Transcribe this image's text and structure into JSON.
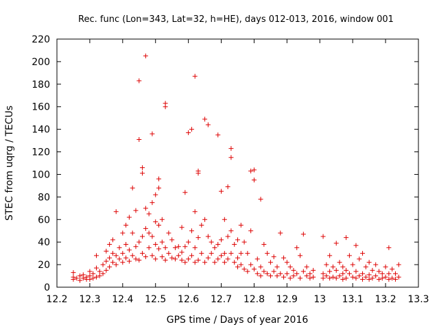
{
  "chart_data": {
    "type": "scatter",
    "title": "Rec. func (Lon=343, Lat=32, h=HE), days 012-013, 2016, window 001",
    "xlabel": "GPS time / Days of year 2016",
    "ylabel": "STEC from uqrg / TECUs",
    "xlim": [
      12.2,
      13.3
    ],
    "ylim": [
      0,
      220
    ],
    "xticks": [
      {
        "value": 12.2,
        "label": "12.2"
      },
      {
        "value": 12.3,
        "label": "12.3"
      },
      {
        "value": 12.4,
        "label": "12.4"
      },
      {
        "value": 12.5,
        "label": "12.5"
      },
      {
        "value": 12.6,
        "label": "12.6"
      },
      {
        "value": 12.7,
        "label": "12.7"
      },
      {
        "value": 12.8,
        "label": "12.8"
      },
      {
        "value": 12.9,
        "label": "12.9"
      },
      {
        "value": 13.0,
        "label": "13"
      },
      {
        "value": 13.1,
        "label": "13.1"
      },
      {
        "value": 13.2,
        "label": "13.2"
      },
      {
        "value": 13.3,
        "label": "13.3"
      }
    ],
    "yticks": [
      {
        "value": 0,
        "label": "0"
      },
      {
        "value": 20,
        "label": "20"
      },
      {
        "value": 40,
        "label": "40"
      },
      {
        "value": 60,
        "label": "60"
      },
      {
        "value": 80,
        "label": "80"
      },
      {
        "value": 100,
        "label": "100"
      },
      {
        "value": 120,
        "label": "120"
      },
      {
        "value": 140,
        "label": "140"
      },
      {
        "value": 160,
        "label": "160"
      },
      {
        "value": 180,
        "label": "180"
      },
      {
        "value": 200,
        "label": "200"
      },
      {
        "value": 220,
        "label": "220"
      }
    ],
    "marker": "+",
    "color": "#dd0000",
    "series": [
      {
        "name": "STEC",
        "points": [
          [
            12.25,
            13
          ],
          [
            12.25,
            9
          ],
          [
            12.25,
            7
          ],
          [
            12.26,
            8
          ],
          [
            12.27,
            10
          ],
          [
            12.27,
            6
          ],
          [
            12.28,
            8
          ],
          [
            12.28,
            11
          ],
          [
            12.29,
            9
          ],
          [
            12.29,
            7
          ],
          [
            12.3,
            14
          ],
          [
            12.3,
            10
          ],
          [
            12.3,
            7
          ],
          [
            12.31,
            8
          ],
          [
            12.31,
            12
          ],
          [
            12.32,
            17
          ],
          [
            12.32,
            9
          ],
          [
            12.32,
            28
          ],
          [
            12.33,
            10
          ],
          [
            12.33,
            14
          ],
          [
            12.34,
            20
          ],
          [
            12.34,
            12
          ],
          [
            12.35,
            23
          ],
          [
            12.35,
            15
          ],
          [
            12.35,
            32
          ],
          [
            12.36,
            18
          ],
          [
            12.36,
            26
          ],
          [
            12.36,
            38
          ],
          [
            12.37,
            42
          ],
          [
            12.37,
            22
          ],
          [
            12.37,
            30
          ],
          [
            12.38,
            67
          ],
          [
            12.38,
            28
          ],
          [
            12.38,
            20
          ],
          [
            12.39,
            35
          ],
          [
            12.39,
            25
          ],
          [
            12.4,
            48
          ],
          [
            12.4,
            30
          ],
          [
            12.4,
            22
          ],
          [
            12.41,
            55
          ],
          [
            12.41,
            38
          ],
          [
            12.41,
            26
          ],
          [
            12.42,
            62
          ],
          [
            12.42,
            33
          ],
          [
            12.42,
            23
          ],
          [
            12.43,
            88
          ],
          [
            12.43,
            48
          ],
          [
            12.43,
            28
          ],
          [
            12.44,
            68
          ],
          [
            12.44,
            36
          ],
          [
            12.44,
            25
          ],
          [
            12.45,
            183
          ],
          [
            12.45,
            131
          ],
          [
            12.45,
            40
          ],
          [
            12.45,
            24
          ],
          [
            12.46,
            106
          ],
          [
            12.46,
            101
          ],
          [
            12.46,
            45
          ],
          [
            12.46,
            30
          ],
          [
            12.47,
            70
          ],
          [
            12.47,
            52
          ],
          [
            12.47,
            27
          ],
          [
            12.47,
            205
          ],
          [
            12.48,
            65
          ],
          [
            12.48,
            48
          ],
          [
            12.48,
            35
          ],
          [
            12.49,
            136
          ],
          [
            12.49,
            75
          ],
          [
            12.49,
            45
          ],
          [
            12.49,
            28
          ],
          [
            12.5,
            82
          ],
          [
            12.5,
            58
          ],
          [
            12.5,
            38
          ],
          [
            12.5,
            25
          ],
          [
            12.51,
            96
          ],
          [
            12.51,
            88
          ],
          [
            12.51,
            55
          ],
          [
            12.51,
            34
          ],
          [
            12.52,
            60
          ],
          [
            12.52,
            40
          ],
          [
            12.52,
            27
          ],
          [
            12.53,
            163
          ],
          [
            12.53,
            160
          ],
          [
            12.53,
            35
          ],
          [
            12.53,
            24
          ],
          [
            12.54,
            48
          ],
          [
            12.54,
            30
          ],
          [
            12.55,
            42
          ],
          [
            12.55,
            26
          ],
          [
            12.56,
            35
          ],
          [
            12.56,
            25
          ],
          [
            12.57,
            36
          ],
          [
            12.57,
            28
          ],
          [
            12.58,
            53
          ],
          [
            12.58,
            31
          ],
          [
            12.58,
            24
          ],
          [
            12.59,
            84
          ],
          [
            12.59,
            36
          ],
          [
            12.59,
            22
          ],
          [
            12.6,
            137
          ],
          [
            12.6,
            40
          ],
          [
            12.6,
            25
          ],
          [
            12.61,
            140
          ],
          [
            12.61,
            50
          ],
          [
            12.61,
            28
          ],
          [
            12.62,
            67
          ],
          [
            12.62,
            187
          ],
          [
            12.62,
            35
          ],
          [
            12.62,
            22
          ],
          [
            12.63,
            103
          ],
          [
            12.63,
            101
          ],
          [
            12.63,
            44
          ],
          [
            12.63,
            24
          ],
          [
            12.64,
            55
          ],
          [
            12.64,
            30
          ],
          [
            12.65,
            149
          ],
          [
            12.65,
            60
          ],
          [
            12.65,
            22
          ],
          [
            12.66,
            144
          ],
          [
            12.66,
            45
          ],
          [
            12.66,
            26
          ],
          [
            12.67,
            40
          ],
          [
            12.67,
            30
          ],
          [
            12.68,
            35
          ],
          [
            12.68,
            22
          ],
          [
            12.69,
            135
          ],
          [
            12.69,
            38
          ],
          [
            12.69,
            25
          ],
          [
            12.7,
            85
          ],
          [
            12.7,
            42
          ],
          [
            12.7,
            28
          ],
          [
            12.71,
            60
          ],
          [
            12.71,
            30
          ],
          [
            12.71,
            22
          ],
          [
            12.72,
            89
          ],
          [
            12.72,
            45
          ],
          [
            12.72,
            25
          ],
          [
            12.73,
            123
          ],
          [
            12.73,
            115
          ],
          [
            12.73,
            50
          ],
          [
            12.73,
            30
          ],
          [
            12.74,
            38
          ],
          [
            12.74,
            22
          ],
          [
            12.75,
            42
          ],
          [
            12.75,
            26
          ],
          [
            12.75,
            18
          ],
          [
            12.76,
            55
          ],
          [
            12.76,
            30
          ],
          [
            12.76,
            20
          ],
          [
            12.77,
            40
          ],
          [
            12.77,
            16
          ],
          [
            12.78,
            30
          ],
          [
            12.78,
            14
          ],
          [
            12.79,
            103
          ],
          [
            12.79,
            50
          ],
          [
            12.79,
            20
          ],
          [
            12.8,
            104
          ],
          [
            12.8,
            95
          ],
          [
            12.8,
            16
          ],
          [
            12.81,
            25
          ],
          [
            12.81,
            12
          ],
          [
            12.82,
            78
          ],
          [
            12.82,
            18
          ],
          [
            12.82,
            10
          ],
          [
            12.83,
            38
          ],
          [
            12.83,
            14
          ],
          [
            12.84,
            30
          ],
          [
            12.84,
            12
          ],
          [
            12.85,
            22
          ],
          [
            12.85,
            10
          ],
          [
            12.86,
            27
          ],
          [
            12.86,
            14
          ],
          [
            12.87,
            18
          ],
          [
            12.87,
            10
          ],
          [
            12.88,
            48
          ],
          [
            12.88,
            12
          ],
          [
            12.89,
            26
          ],
          [
            12.89,
            9
          ],
          [
            12.9,
            22
          ],
          [
            12.9,
            12
          ],
          [
            12.91,
            18
          ],
          [
            12.91,
            8
          ],
          [
            12.92,
            15
          ],
          [
            12.92,
            10
          ],
          [
            12.93,
            35
          ],
          [
            12.93,
            12
          ],
          [
            12.94,
            28
          ],
          [
            12.94,
            8
          ],
          [
            12.95,
            47
          ],
          [
            12.95,
            14
          ],
          [
            12.96,
            18
          ],
          [
            12.96,
            10
          ],
          [
            12.97,
            12
          ],
          [
            12.97,
            8
          ],
          [
            12.98,
            15
          ],
          [
            12.98,
            9
          ],
          [
            13.01,
            45
          ],
          [
            13.01,
            12
          ],
          [
            13.01,
            8
          ],
          [
            13.02,
            20
          ],
          [
            13.02,
            10
          ],
          [
            13.03,
            28
          ],
          [
            13.03,
            14
          ],
          [
            13.03,
            8
          ],
          [
            13.04,
            18
          ],
          [
            13.04,
            9
          ],
          [
            13.05,
            39
          ],
          [
            13.05,
            15
          ],
          [
            13.05,
            8
          ],
          [
            13.06,
            22
          ],
          [
            13.06,
            10
          ],
          [
            13.07,
            18
          ],
          [
            13.07,
            12
          ],
          [
            13.07,
            7
          ],
          [
            13.08,
            44
          ],
          [
            13.08,
            15
          ],
          [
            13.08,
            8
          ],
          [
            13.09,
            28
          ],
          [
            13.09,
            12
          ],
          [
            13.1,
            20
          ],
          [
            13.1,
            9
          ],
          [
            13.11,
            37
          ],
          [
            13.11,
            14
          ],
          [
            13.11,
            8
          ],
          [
            13.12,
            25
          ],
          [
            13.12,
            10
          ],
          [
            13.13,
            30
          ],
          [
            13.13,
            12
          ],
          [
            13.13,
            7
          ],
          [
            13.14,
            18
          ],
          [
            13.14,
            9
          ],
          [
            13.15,
            22
          ],
          [
            13.15,
            11
          ],
          [
            13.15,
            7
          ],
          [
            13.16,
            15
          ],
          [
            13.16,
            8
          ],
          [
            13.17,
            20
          ],
          [
            13.17,
            10
          ],
          [
            13.18,
            14
          ],
          [
            13.18,
            7
          ],
          [
            13.19,
            12
          ],
          [
            13.19,
            8
          ],
          [
            13.2,
            18
          ],
          [
            13.2,
            9
          ],
          [
            13.21,
            35
          ],
          [
            13.21,
            12
          ],
          [
            13.21,
            7
          ],
          [
            13.22,
            16
          ],
          [
            13.22,
            8
          ],
          [
            13.23,
            12
          ],
          [
            13.23,
            7
          ],
          [
            13.24,
            20
          ],
          [
            13.24,
            9
          ]
        ]
      }
    ]
  }
}
